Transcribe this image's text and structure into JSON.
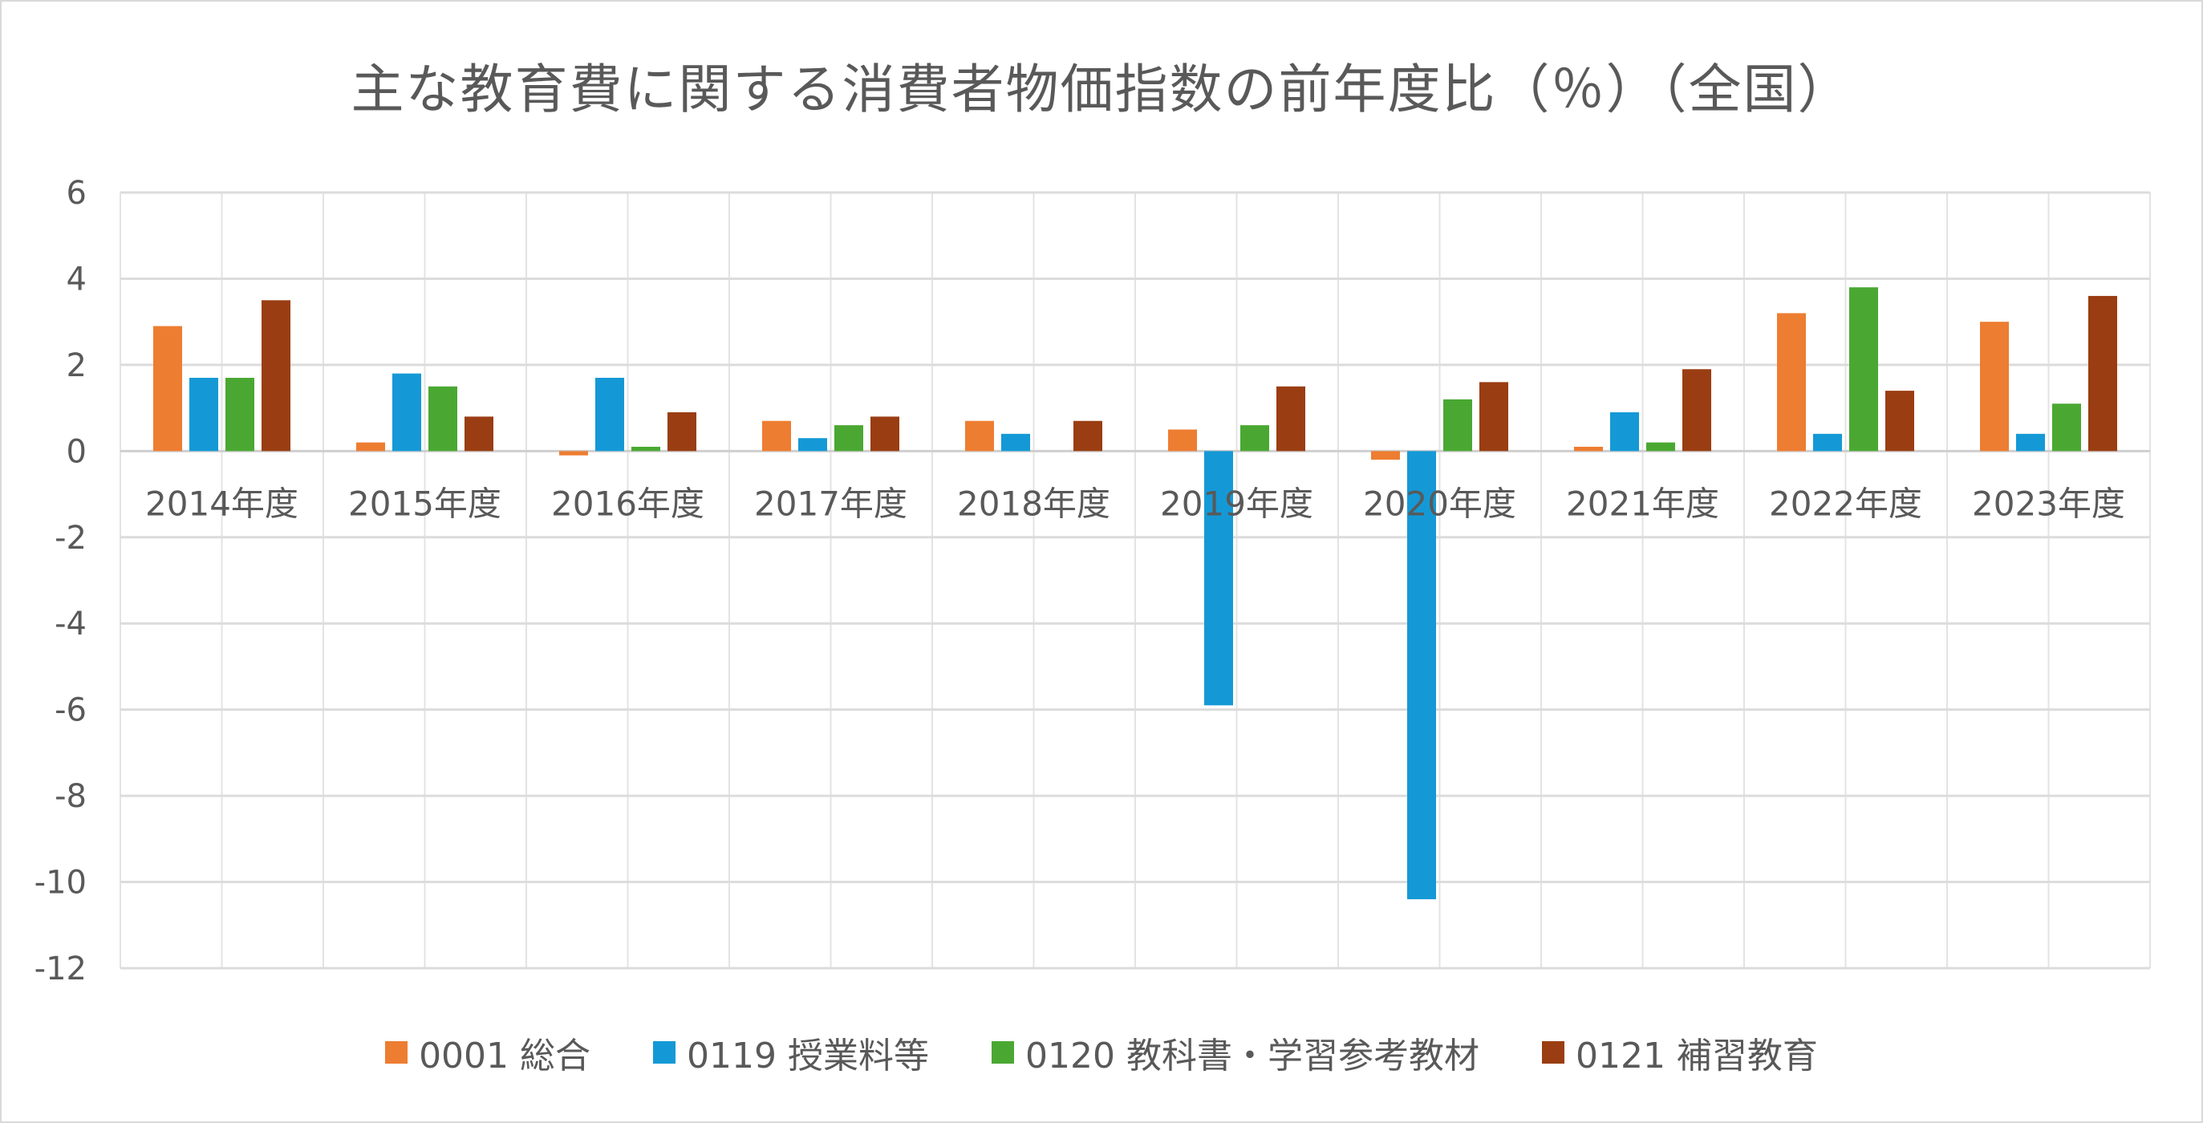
{
  "chart_data": {
    "type": "bar",
    "title": "主な教育費に関する消費者物価指数の前年度比（％）（全国）",
    "categories": [
      "2014年度",
      "2015年度",
      "2016年度",
      "2017年度",
      "2018年度",
      "2019年度",
      "2020年度",
      "2021年度",
      "2022年度",
      "2023年度"
    ],
    "series": [
      {
        "name": "0001 総合",
        "color": "#ed7d31",
        "values": [
          2.9,
          0.2,
          -0.1,
          0.7,
          0.7,
          0.5,
          -0.2,
          0.1,
          3.2,
          3.0
        ]
      },
      {
        "name": "0119 授業料等",
        "color": "#1499d6",
        "values": [
          1.7,
          1.8,
          1.7,
          0.3,
          0.4,
          -5.9,
          -10.4,
          0.9,
          0.4,
          0.4
        ]
      },
      {
        "name": "0120 教科書・学習参考教材",
        "color": "#4aa832",
        "values": [
          1.7,
          1.5,
          0.1,
          0.6,
          0.0,
          0.6,
          1.2,
          0.2,
          3.8,
          1.1
        ]
      },
      {
        "name": "0121 補習教育",
        "color": "#9a3d12",
        "values": [
          3.5,
          0.8,
          0.9,
          0.8,
          0.7,
          1.5,
          1.6,
          1.9,
          1.4,
          3.6
        ]
      }
    ],
    "yticks": [
      "6",
      "4",
      "2",
      "0",
      "-2",
      "-4",
      "-6",
      "-8",
      "-10",
      "-12"
    ],
    "ylim": [
      -12,
      6
    ],
    "xlabel": "",
    "ylabel": "",
    "grid": true,
    "legend_position": "bottom"
  }
}
